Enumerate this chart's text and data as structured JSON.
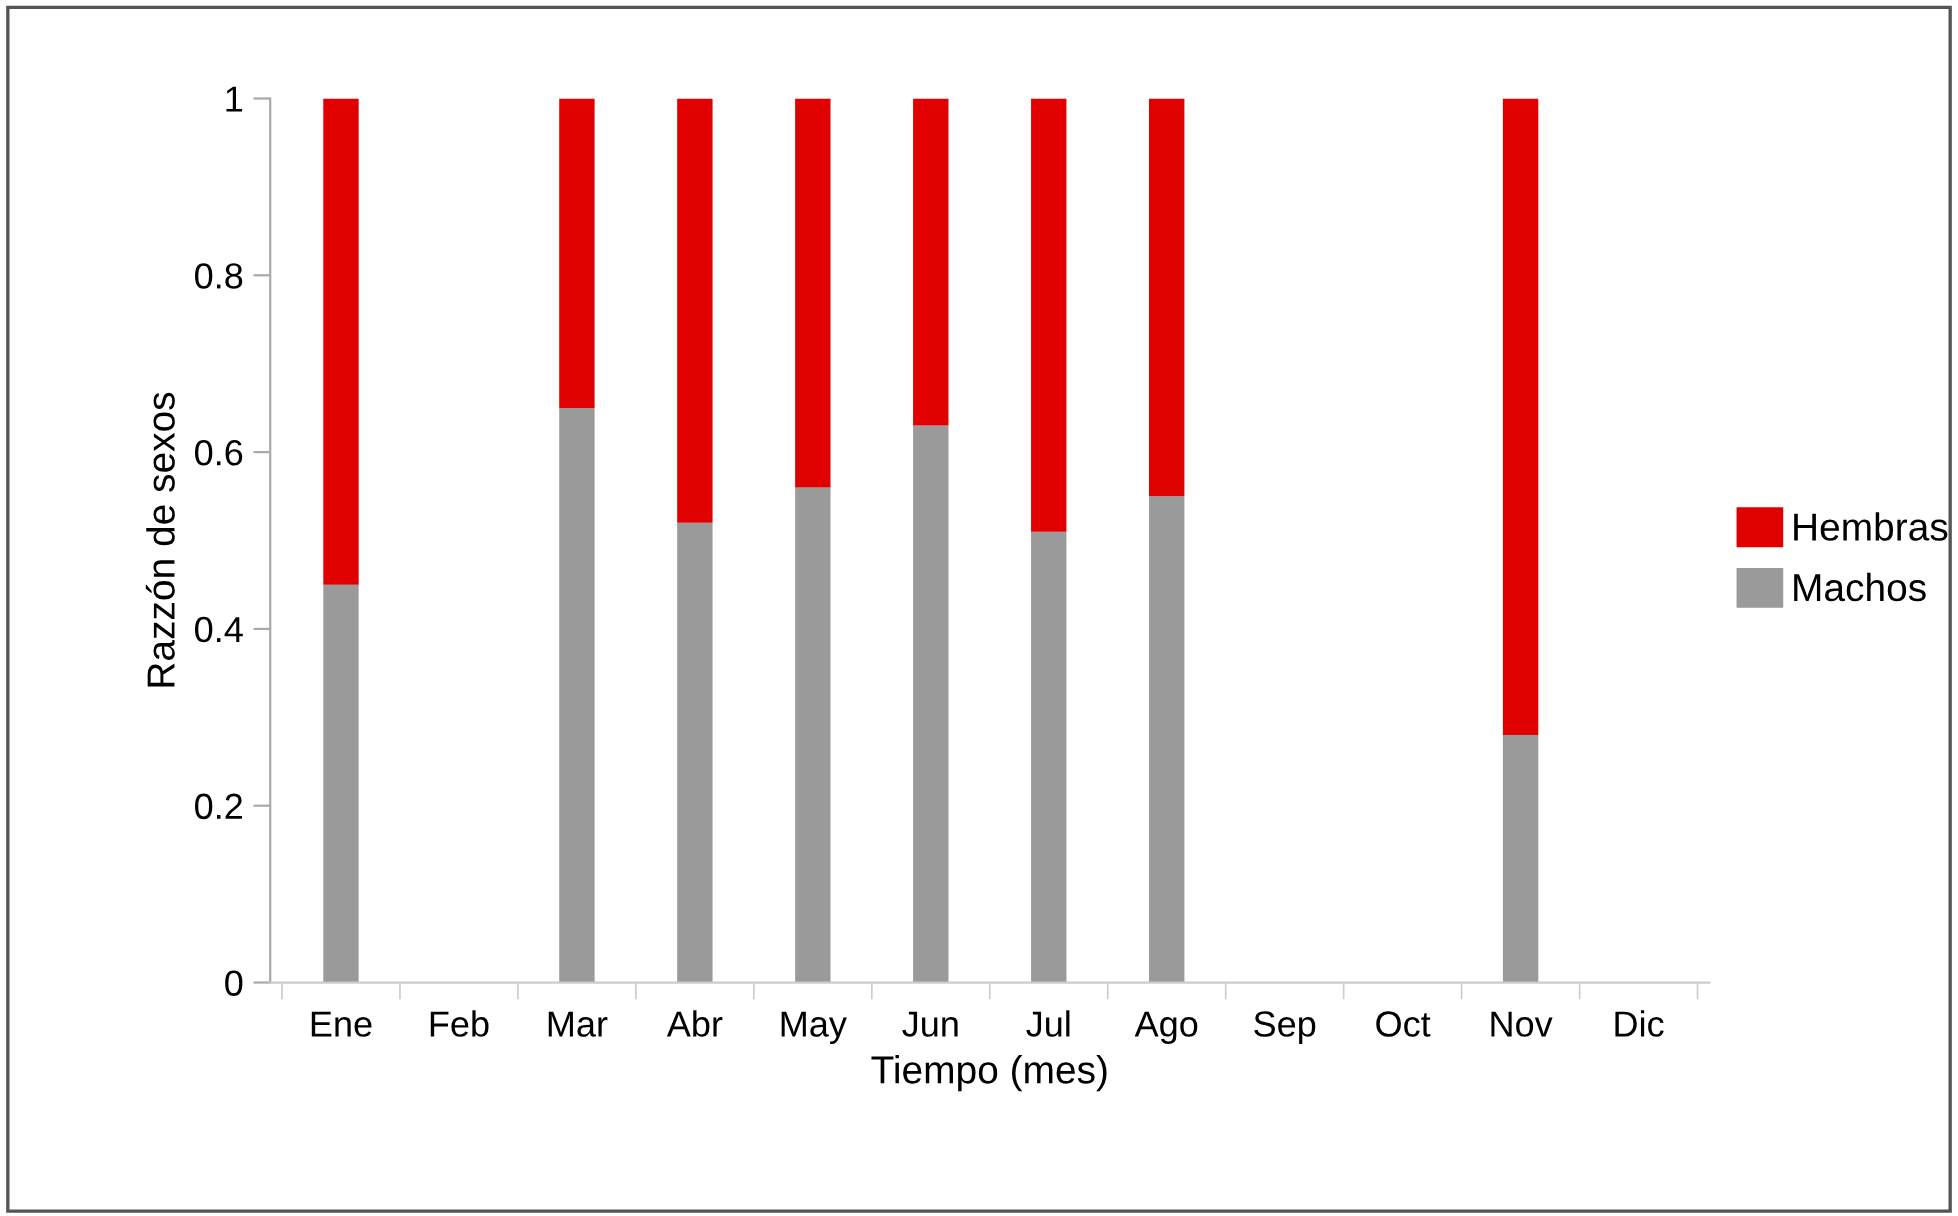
{
  "chart_data": {
    "type": "bar",
    "stacked": true,
    "xlabel": "Tiempo (mes)",
    "ylabel": "Razzón de sexos",
    "categories": [
      "Ene",
      "Feb",
      "Mar",
      "Abr",
      "May",
      "Jun",
      "Jul",
      "Ago",
      "Sep",
      "Oct",
      "Nov",
      "Dic"
    ],
    "series": [
      {
        "name": "Machos",
        "color": "#9a9a9a",
        "values": [
          0.45,
          null,
          0.65,
          0.52,
          0.56,
          0.63,
          0.51,
          0.55,
          null,
          null,
          0.28,
          null
        ]
      },
      {
        "name": "Hembras",
        "color": "#e00000",
        "values": [
          0.55,
          null,
          0.35,
          0.48,
          0.44,
          0.37,
          0.49,
          0.45,
          null,
          null,
          0.72,
          null
        ]
      }
    ],
    "ylim": [
      0,
      1
    ],
    "yticks": [
      0,
      {
        "value": 0.2,
        "label": "0.2"
      },
      {
        "value": 0.4,
        "label": "0.4"
      },
      {
        "value": 0.6,
        "label": "0.6"
      },
      {
        "value": 0.8,
        "label": "0.8"
      },
      1
    ],
    "grid": false,
    "legend": "right"
  }
}
